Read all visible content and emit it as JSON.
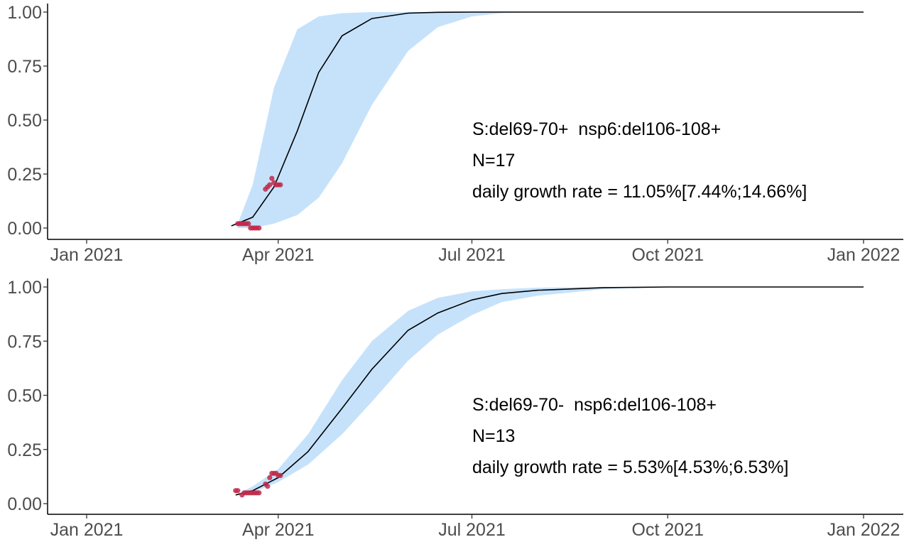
{
  "chart_data": [
    {
      "type": "line",
      "x_axis": {
        "type": "date",
        "range": [
          "2021-01-01",
          "2022-01-01"
        ],
        "ticks": [
          "2021-01-01",
          "2021-04-01",
          "2021-07-01",
          "2021-10-01",
          "2022-01-01"
        ],
        "tick_labels": [
          "Jan 2021",
          "Apr 2021",
          "Jul 2021",
          "Oct 2021",
          "Jan 2022"
        ]
      },
      "y_axis": {
        "range": [
          0,
          1
        ],
        "ticks": [
          0,
          0.25,
          0.5,
          0.75,
          1
        ],
        "tick_labels": [
          "0.00",
          "0.25",
          "0.50",
          "0.75",
          "1.00"
        ]
      },
      "grid": false,
      "annotation": {
        "lines": [
          "S:del69-70+  nsp6:del106-108+",
          "N=17",
          "daily growth rate = 11.05%[7.44%;14.66%]"
        ]
      },
      "fit": {
        "x": [
          "2021-03-10",
          "2021-03-20",
          "2021-03-30",
          "2021-04-10",
          "2021-04-20",
          "2021-05-01",
          "2021-05-15",
          "2021-06-01",
          "2021-06-15",
          "2021-07-01",
          "2021-08-01",
          "2021-09-01",
          "2021-10-01",
          "2021-11-01",
          "2021-12-01",
          "2022-01-01"
        ],
        "y": [
          0.01,
          0.05,
          0.19,
          0.45,
          0.72,
          0.89,
          0.97,
          0.995,
          0.999,
          1.0,
          1.0,
          1.0,
          1.0,
          1.0,
          1.0,
          1.0
        ]
      },
      "ci_band": {
        "x": [
          "2021-03-13",
          "2021-03-20",
          "2021-03-30",
          "2021-04-10",
          "2021-04-20",
          "2021-05-01",
          "2021-05-15",
          "2021-06-01",
          "2021-06-15",
          "2021-07-01",
          "2021-07-15",
          "2021-08-01",
          "2021-09-01",
          "2021-10-01"
        ],
        "lower": [
          0.0,
          0.0,
          0.02,
          0.06,
          0.14,
          0.3,
          0.57,
          0.82,
          0.93,
          0.98,
          0.995,
          1.0,
          1.0,
          1.0
        ],
        "upper": [
          0.02,
          0.2,
          0.65,
          0.92,
          0.98,
          0.995,
          1.0,
          1.0,
          1.0,
          1.0,
          1.0,
          1.0,
          1.0,
          1.0
        ]
      },
      "points": [
        {
          "x": "2021-03-13",
          "y": 0.02
        },
        {
          "x": "2021-03-14",
          "y": 0.02
        },
        {
          "x": "2021-03-15",
          "y": 0.02
        },
        {
          "x": "2021-03-16",
          "y": 0.02
        },
        {
          "x": "2021-03-17",
          "y": 0.02
        },
        {
          "x": "2021-03-18",
          "y": 0.02
        },
        {
          "x": "2021-03-19",
          "y": 0.0
        },
        {
          "x": "2021-03-20",
          "y": 0.0
        },
        {
          "x": "2021-03-21",
          "y": 0.0
        },
        {
          "x": "2021-03-22",
          "y": 0.0
        },
        {
          "x": "2021-03-23",
          "y": 0.0
        },
        {
          "x": "2021-03-26",
          "y": 0.18
        },
        {
          "x": "2021-03-27",
          "y": 0.19
        },
        {
          "x": "2021-03-28",
          "y": 0.2
        },
        {
          "x": "2021-03-29",
          "y": 0.23
        },
        {
          "x": "2021-03-30",
          "y": 0.21
        },
        {
          "x": "2021-03-31",
          "y": 0.2
        },
        {
          "x": "2021-04-01",
          "y": 0.2
        },
        {
          "x": "2021-04-02",
          "y": 0.2
        }
      ],
      "colors": {
        "band": "#c6e2fb",
        "fit": "#000000",
        "points": "#c0294a",
        "axis": "#000000",
        "ticks": "#333333",
        "tick_labels": "#4d4d4d"
      }
    },
    {
      "type": "line",
      "x_axis": {
        "type": "date",
        "range": [
          "2021-01-01",
          "2022-01-01"
        ],
        "ticks": [
          "2021-01-01",
          "2021-04-01",
          "2021-07-01",
          "2021-10-01",
          "2022-01-01"
        ],
        "tick_labels": [
          "Jan 2021",
          "Apr 2021",
          "Jul 2021",
          "Oct 2021",
          "Jan 2022"
        ]
      },
      "y_axis": {
        "range": [
          0,
          1
        ],
        "ticks": [
          0,
          0.25,
          0.5,
          0.75,
          1
        ],
        "tick_labels": [
          "0.00",
          "0.25",
          "0.50",
          "0.75",
          "1.00"
        ]
      },
      "grid": false,
      "annotation": {
        "lines": [
          "S:del69-70-  nsp6:del106-108+",
          "N=13",
          "daily growth rate = 5.53%[4.53%;6.53%]"
        ]
      },
      "fit": {
        "x": [
          "2021-03-12",
          "2021-03-20",
          "2021-04-01",
          "2021-04-15",
          "2021-05-01",
          "2021-05-15",
          "2021-06-01",
          "2021-06-15",
          "2021-07-01",
          "2021-07-15",
          "2021-08-01",
          "2021-09-01",
          "2021-10-01",
          "2021-11-01",
          "2021-12-01",
          "2022-01-01"
        ],
        "y": [
          0.04,
          0.06,
          0.12,
          0.24,
          0.44,
          0.62,
          0.8,
          0.88,
          0.94,
          0.97,
          0.985,
          0.997,
          1.0,
          1.0,
          1.0,
          1.0
        ]
      },
      "ci_band": {
        "x": [
          "2021-03-12",
          "2021-03-20",
          "2021-04-01",
          "2021-04-15",
          "2021-05-01",
          "2021-05-15",
          "2021-06-01",
          "2021-06-15",
          "2021-07-01",
          "2021-07-15",
          "2021-08-01",
          "2021-09-01",
          "2021-10-01",
          "2021-11-01"
        ],
        "lower": [
          0.04,
          0.05,
          0.1,
          0.18,
          0.32,
          0.47,
          0.66,
          0.78,
          0.87,
          0.93,
          0.96,
          0.99,
          1.0,
          1.0
        ],
        "upper": [
          0.04,
          0.08,
          0.16,
          0.32,
          0.57,
          0.75,
          0.89,
          0.95,
          0.98,
          0.99,
          0.997,
          1.0,
          1.0,
          1.0
        ]
      },
      "points": [
        {
          "x": "2021-03-12",
          "y": 0.06
        },
        {
          "x": "2021-03-13",
          "y": 0.06
        },
        {
          "x": "2021-03-15",
          "y": 0.04
        },
        {
          "x": "2021-03-16",
          "y": 0.05
        },
        {
          "x": "2021-03-17",
          "y": 0.05
        },
        {
          "x": "2021-03-18",
          "y": 0.05
        },
        {
          "x": "2021-03-19",
          "y": 0.05
        },
        {
          "x": "2021-03-20",
          "y": 0.05
        },
        {
          "x": "2021-03-21",
          "y": 0.05
        },
        {
          "x": "2021-03-22",
          "y": 0.05
        },
        {
          "x": "2021-03-23",
          "y": 0.05
        },
        {
          "x": "2021-03-26",
          "y": 0.09
        },
        {
          "x": "2021-03-27",
          "y": 0.08
        },
        {
          "x": "2021-03-28",
          "y": 0.12
        },
        {
          "x": "2021-03-29",
          "y": 0.14
        },
        {
          "x": "2021-03-30",
          "y": 0.14
        },
        {
          "x": "2021-03-31",
          "y": 0.14
        },
        {
          "x": "2021-04-01",
          "y": 0.13
        },
        {
          "x": "2021-04-02",
          "y": 0.13
        }
      ],
      "colors": {
        "band": "#c6e2fb",
        "fit": "#000000",
        "points": "#c0294a",
        "axis": "#000000",
        "ticks": "#333333",
        "tick_labels": "#4d4d4d"
      }
    }
  ]
}
